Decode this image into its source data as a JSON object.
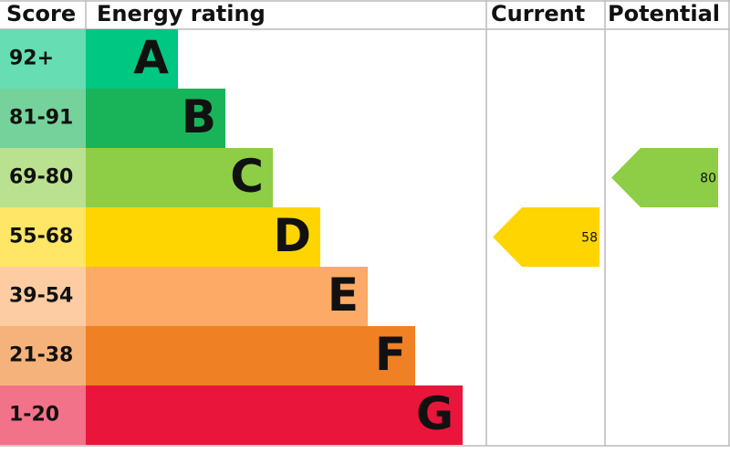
{
  "headers": {
    "score": "Score",
    "rating": "Energy rating",
    "current": "Current",
    "potential": "Potential"
  },
  "bands": [
    {
      "score": "92+",
      "letter": "A",
      "color": "#00c781"
    },
    {
      "score": "81-91",
      "letter": "B",
      "color": "#19b459"
    },
    {
      "score": "69-80",
      "letter": "C",
      "color": "#8dce46"
    },
    {
      "score": "55-68",
      "letter": "D",
      "color": "#ffd500"
    },
    {
      "score": "39-54",
      "letter": "E",
      "color": "#fcaa65"
    },
    {
      "score": "21-38",
      "letter": "F",
      "color": "#ef8023"
    },
    {
      "score": "1-20",
      "letter": "G",
      "color": "#e9153b"
    }
  ],
  "current": {
    "value": 58
  },
  "potential": {
    "value": 80
  }
}
